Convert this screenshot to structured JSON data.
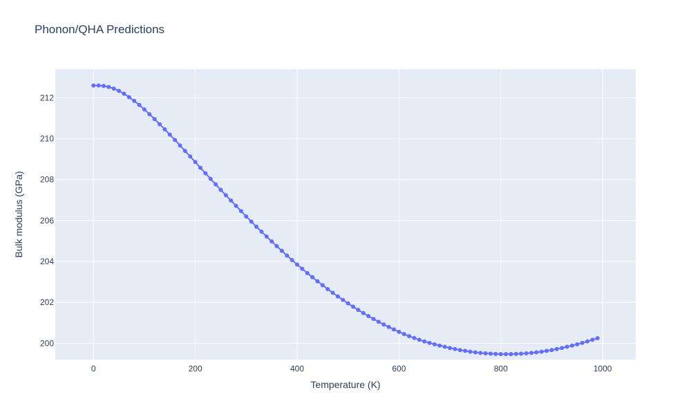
{
  "chart_data": {
    "type": "scatter",
    "mode": "lines+markers",
    "title": "Phonon/QHA Predictions",
    "xlabel": "Temperature (K)",
    "ylabel": "Bulk modulus (GPa)",
    "xlim": [
      -75,
      1065
    ],
    "ylim": [
      199.2,
      213.4
    ],
    "xticks": [
      0,
      200,
      400,
      600,
      800,
      1000
    ],
    "yticks": [
      200,
      202,
      204,
      206,
      208,
      210,
      212
    ],
    "grid": true,
    "legend": "none",
    "colors": {
      "series": "#636efa",
      "plot_bg": "#e5ecf6",
      "grid": "#ffffff",
      "text": "#2a3f5f"
    },
    "series": [
      {
        "x": [
          0,
          10,
          20,
          30,
          40,
          50,
          60,
          70,
          80,
          90,
          100,
          110,
          120,
          130,
          140,
          150,
          160,
          170,
          180,
          190,
          200,
          210,
          220,
          230,
          240,
          250,
          260,
          270,
          280,
          290,
          300,
          310,
          320,
          330,
          340,
          350,
          360,
          370,
          380,
          390,
          400,
          410,
          420,
          430,
          440,
          450,
          460,
          470,
          480,
          490,
          500,
          510,
          520,
          530,
          540,
          550,
          560,
          570,
          580,
          590,
          600,
          610,
          620,
          630,
          640,
          650,
          660,
          670,
          680,
          690,
          700,
          710,
          720,
          730,
          740,
          750,
          760,
          770,
          780,
          790,
          800,
          810,
          820,
          830,
          840,
          850,
          860,
          870,
          880,
          890,
          900,
          910,
          920,
          930,
          940,
          950,
          960,
          970,
          980,
          990
        ],
        "y": [
          212.6,
          212.6,
          212.58,
          212.53,
          212.45,
          212.34,
          212.2,
          212.03,
          211.85,
          211.65,
          211.43,
          211.2,
          210.96,
          210.71,
          210.46,
          210.2,
          209.94,
          209.67,
          209.4,
          209.13,
          208.86,
          208.58,
          208.31,
          208.04,
          207.77,
          207.5,
          207.24,
          206.98,
          206.72,
          206.46,
          206.2,
          205.95,
          205.7,
          205.46,
          205.22,
          204.98,
          204.75,
          204.52,
          204.29,
          204.07,
          203.85,
          203.64,
          203.43,
          203.23,
          203.03,
          202.84,
          202.65,
          202.47,
          202.29,
          202.12,
          201.95,
          201.79,
          201.63,
          201.48,
          201.33,
          201.19,
          201.05,
          200.92,
          200.8,
          200.68,
          200.56,
          200.45,
          200.35,
          200.26,
          200.17,
          200.09,
          200.02,
          199.95,
          199.89,
          199.83,
          199.77,
          199.72,
          199.67,
          199.63,
          199.59,
          199.56,
          199.53,
          199.51,
          199.49,
          199.48,
          199.47,
          199.47,
          199.47,
          199.48,
          199.49,
          199.51,
          199.53,
          199.56,
          199.59,
          199.63,
          199.67,
          199.72,
          199.77,
          199.83,
          199.89,
          199.95,
          200.02,
          200.09,
          200.17,
          200.25
        ]
      }
    ]
  }
}
